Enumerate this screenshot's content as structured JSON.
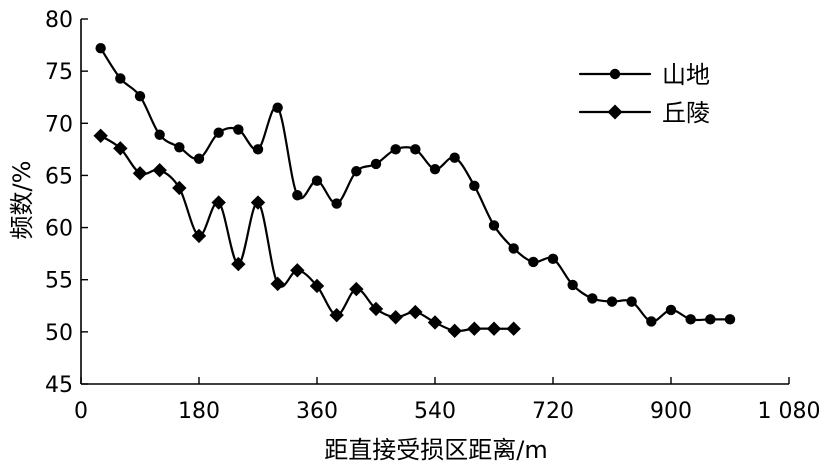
{
  "chart_data": {
    "type": "line",
    "title": "",
    "xlabel": "距直接受损区距离/m",
    "ylabel": "频数/%",
    "xlim": [
      0,
      1080
    ],
    "ylim": [
      45,
      80
    ],
    "x_ticks": [
      0,
      180,
      360,
      540,
      720,
      900,
      1080
    ],
    "x_tick_labels": [
      "0",
      "180",
      "360",
      "540",
      "720",
      "900",
      "1 080"
    ],
    "y_ticks": [
      45,
      50,
      55,
      60,
      65,
      70,
      75,
      80
    ],
    "y_tick_labels": [
      "45",
      "50",
      "55",
      "60",
      "65",
      "70",
      "75",
      "80"
    ],
    "grid": false,
    "legend_position": "top-right",
    "series": [
      {
        "name": "山地",
        "marker": "circle",
        "color": "#000000",
        "x": [
          30,
          60,
          90,
          120,
          150,
          180,
          210,
          240,
          270,
          300,
          330,
          360,
          390,
          420,
          450,
          480,
          510,
          540,
          570,
          600,
          630,
          660,
          690,
          720,
          750,
          780,
          810,
          840,
          870,
          900,
          930,
          960,
          990
        ],
        "y": [
          77.2,
          74.3,
          72.6,
          68.9,
          67.7,
          66.6,
          69.1,
          69.4,
          67.5,
          71.5,
          63.1,
          64.5,
          62.3,
          65.4,
          66.1,
          67.5,
          67.5,
          65.6,
          66.7,
          64.0,
          60.2,
          58.0,
          56.7,
          57.0,
          54.5,
          53.2,
          52.9,
          52.9,
          51.0,
          52.1,
          51.2,
          51.2,
          51.2
        ]
      },
      {
        "name": "丘陵",
        "marker": "diamond",
        "color": "#000000",
        "x": [
          30,
          60,
          90,
          120,
          150,
          180,
          210,
          240,
          270,
          300,
          330,
          360,
          390,
          420,
          450,
          480,
          510,
          540,
          570,
          600,
          630,
          660
        ],
        "y": [
          68.8,
          67.6,
          65.2,
          65.5,
          63.8,
          59.2,
          62.4,
          56.5,
          62.4,
          54.6,
          55.9,
          54.4,
          51.6,
          54.1,
          52.2,
          51.4,
          51.9,
          50.9,
          50.1,
          50.3,
          50.3,
          50.3
        ]
      }
    ]
  }
}
